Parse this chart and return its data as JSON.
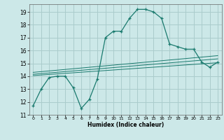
{
  "bg_color": "#cce8e8",
  "grid_color": "#aacccc",
  "line_color": "#1a7a6e",
  "marker_color": "#1a7a6e",
  "xlabel": "Humidex (Indice chaleur)",
  "xlim": [
    -0.5,
    23.5
  ],
  "ylim": [
    11,
    19.6
  ],
  "yticks": [
    11,
    12,
    13,
    14,
    15,
    16,
    17,
    18,
    19
  ],
  "xticks": [
    0,
    1,
    2,
    3,
    4,
    5,
    6,
    7,
    8,
    9,
    10,
    11,
    12,
    13,
    14,
    15,
    16,
    17,
    18,
    19,
    20,
    21,
    22,
    23
  ],
  "series1_x": [
    0,
    1,
    2,
    3,
    4,
    5,
    6,
    7,
    8,
    9,
    10,
    11,
    12,
    13,
    14,
    15,
    16,
    17,
    18,
    19,
    20,
    21,
    22,
    23
  ],
  "series1_y": [
    11.7,
    13.0,
    13.9,
    14.0,
    14.0,
    13.1,
    11.5,
    12.2,
    13.8,
    17.0,
    17.5,
    17.5,
    18.5,
    19.2,
    19.2,
    19.0,
    18.5,
    16.5,
    16.3,
    16.1,
    16.1,
    15.1,
    14.7,
    15.1
  ],
  "series2_x": [
    0,
    23
  ],
  "series2_y": [
    14.05,
    15.05
  ],
  "series3_x": [
    0,
    23
  ],
  "series3_y": [
    14.15,
    15.35
  ],
  "series4_x": [
    0,
    23
  ],
  "series4_y": [
    14.3,
    15.6
  ]
}
